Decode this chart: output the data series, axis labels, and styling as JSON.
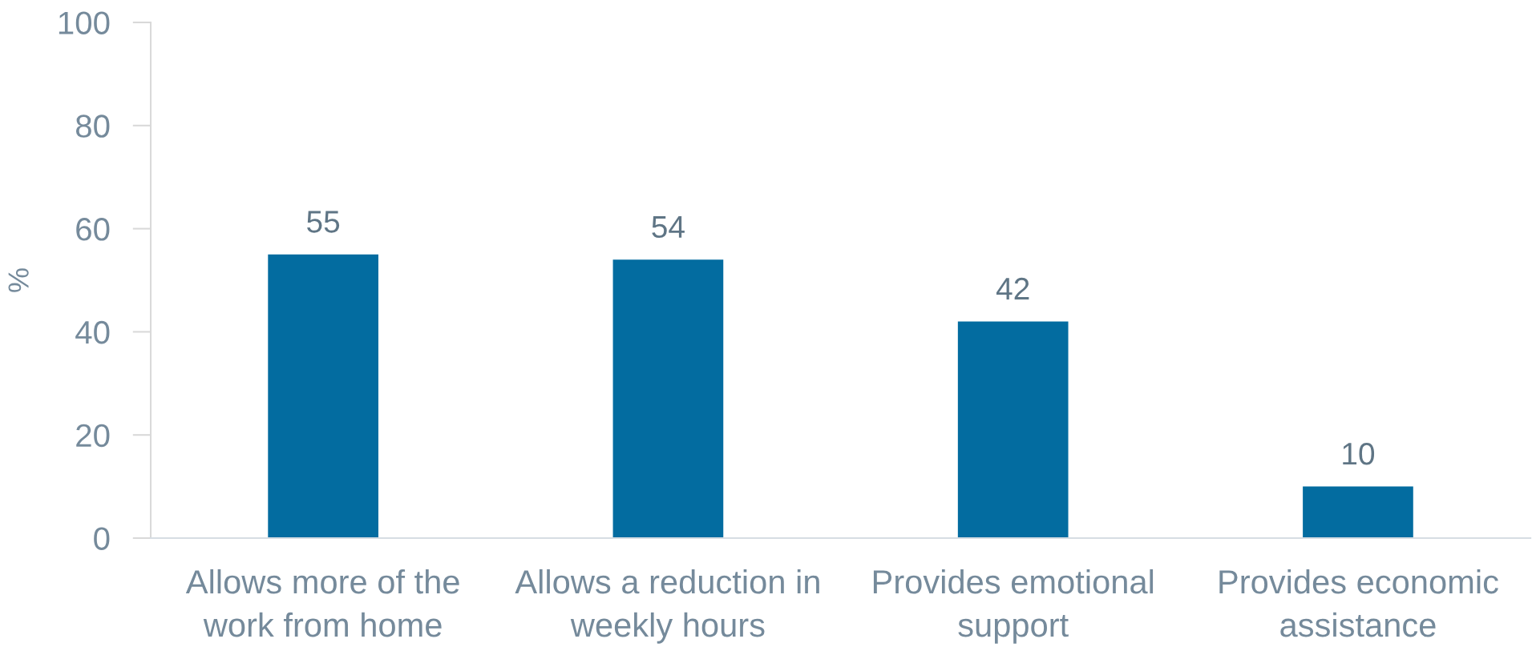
{
  "chart_data": {
    "type": "bar",
    "ylabel": "%",
    "categories": [
      "Allows more of the\nwork from home",
      "Allows a reduction in\nweekly hours",
      "Provides emotional\nsupport",
      "Provides economic\nassistance"
    ],
    "values": [
      55,
      54,
      42,
      10
    ],
    "color": "#036ca0",
    "ylim": [
      0,
      100
    ],
    "yticks": [
      0,
      20,
      40,
      60,
      80,
      100
    ],
    "data_labels": true
  }
}
